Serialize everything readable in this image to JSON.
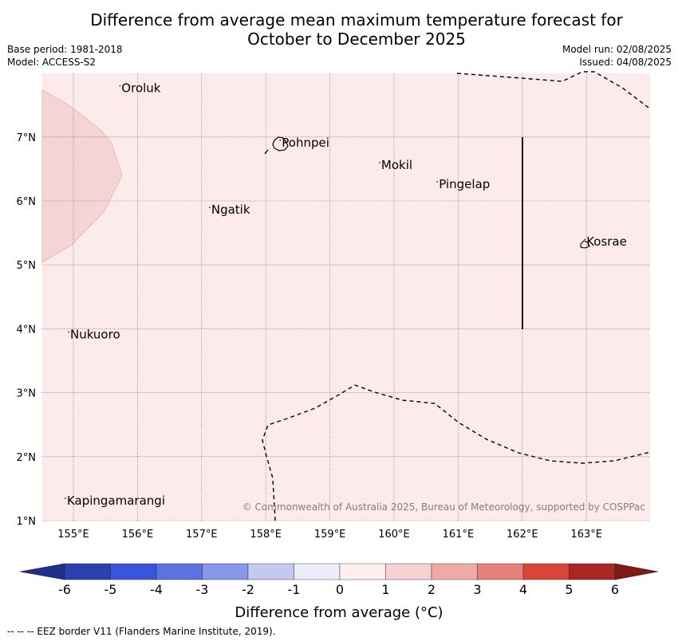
{
  "title_line1": "Difference from average mean maximum temperature forecast for",
  "title_line2": "October to December 2025",
  "base_period": "Base period: 1981-2018",
  "model": "Model: ACCESS-S2",
  "model_run": "Model run: 02/08/2025",
  "issued": "Issued: 04/08/2025",
  "copyright": "© Commonwealth of Australia 2025, Bureau of Meteorology, supported by COSPPac",
  "colorbar_label": "Difference from average (°C)",
  "footer_note": "--  --  -- EEZ border V11 (Flanders Marine Institute, 2019).",
  "colors": {
    "background_anomaly": "#fcebea",
    "warm_patch": "#f4d5d4",
    "eez_line": "#000000"
  },
  "colorbar": {
    "ticks": [
      "-6",
      "-5",
      "-4",
      "-3",
      "-2",
      "-1",
      "0",
      "1",
      "2",
      "3",
      "4",
      "5",
      "6"
    ],
    "colors": [
      "#1f2f8c",
      "#2a3fb0",
      "#3a55dc",
      "#5a73e3",
      "#8797ea",
      "#c3c9f2",
      "#ececfa",
      "#fdf0ee",
      "#f5d3d2",
      "#eeaaa7",
      "#e6807a",
      "#d94538",
      "#a82724",
      "#7f1a17"
    ]
  },
  "map": {
    "lon_range": [
      154.5,
      164.0
    ],
    "lat_range": [
      1.0,
      8.0
    ],
    "lon_ticks": [
      "155°E",
      "156°E",
      "157°E",
      "158°E",
      "159°E",
      "160°E",
      "161°E",
      "162°E",
      "163°E"
    ],
    "lat_ticks": [
      "1°N",
      "2°N",
      "3°N",
      "4°N",
      "5°N",
      "6°N",
      "7°N"
    ],
    "places": [
      {
        "name": "Oroluk",
        "lon": 155.75,
        "lat": 7.7
      },
      {
        "name": "Pohnpei",
        "lon": 158.25,
        "lat": 6.85
      },
      {
        "name": "Mokil",
        "lon": 159.8,
        "lat": 6.5
      },
      {
        "name": "Pingelap",
        "lon": 160.7,
        "lat": 6.2
      },
      {
        "name": "Ngatik",
        "lon": 157.15,
        "lat": 5.8
      },
      {
        "name": "Kosrae",
        "lon": 163.0,
        "lat": 5.3
      },
      {
        "name": "Nukuoro",
        "lon": 154.95,
        "lat": 3.85
      },
      {
        "name": "Kapingamarangi",
        "lon": 154.9,
        "lat": 1.25
      }
    ]
  }
}
